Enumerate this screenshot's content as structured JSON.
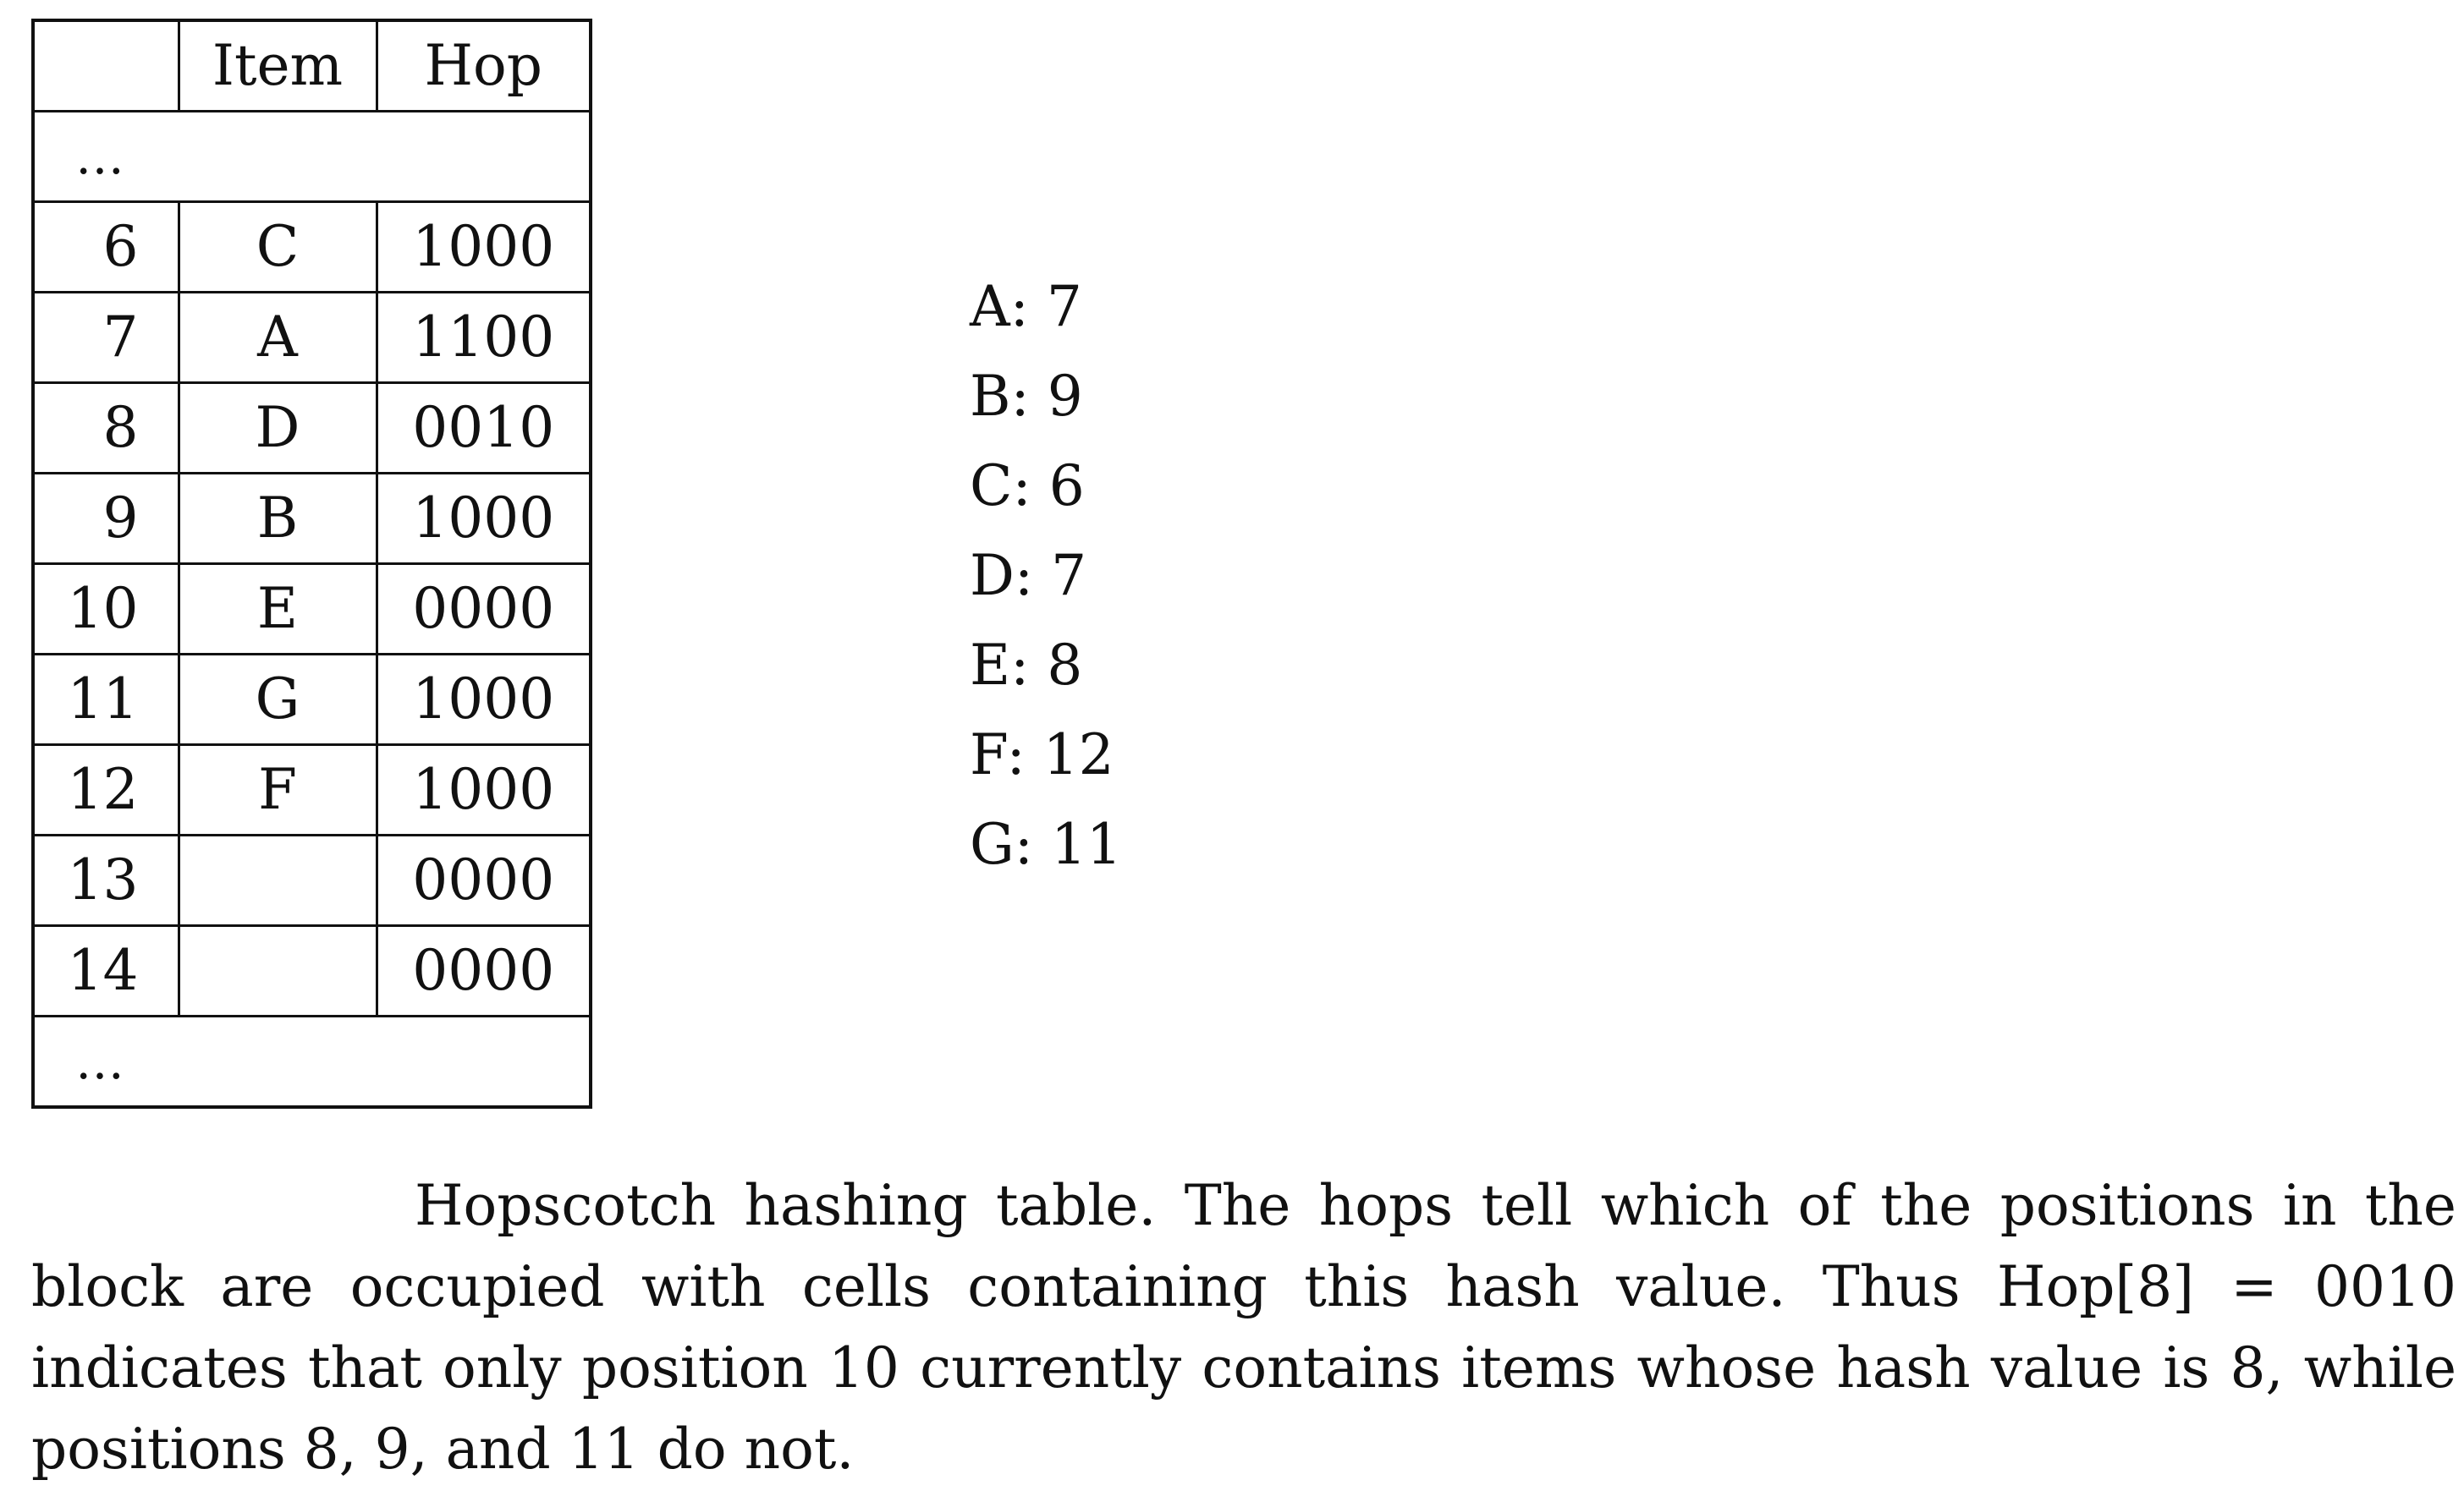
{
  "table": {
    "headers": [
      "",
      "Item",
      "Hop"
    ],
    "top_ellipsis": "…",
    "rows": [
      {
        "index": "6",
        "item": "C",
        "hop": "1000"
      },
      {
        "index": "7",
        "item": "A",
        "hop": "1100"
      },
      {
        "index": "8",
        "item": "D",
        "hop": "0010"
      },
      {
        "index": "9",
        "item": "B",
        "hop": "1000"
      },
      {
        "index": "10",
        "item": "E",
        "hop": "0000"
      },
      {
        "index": "11",
        "item": "G",
        "hop": "1000"
      },
      {
        "index": "12",
        "item": "F",
        "hop": "1000"
      },
      {
        "index": "13",
        "item": "",
        "hop": "0000"
      },
      {
        "index": "14",
        "item": "",
        "hop": "0000"
      }
    ],
    "bottom_ellipsis": "…"
  },
  "hash_values": [
    "A: 7",
    "B: 9",
    "C: 6",
    "D: 7",
    "E: 8",
    "F: 12",
    "G: 11"
  ],
  "caption": "Hopscotch hashing table. The hops tell which of the positions in the block are occupied with cells containing this hash value. Thus Hop[8] = 0010 indicates that only position 10 currently contains items whose hash value is 8, while positions 8, 9, and 11 do not."
}
